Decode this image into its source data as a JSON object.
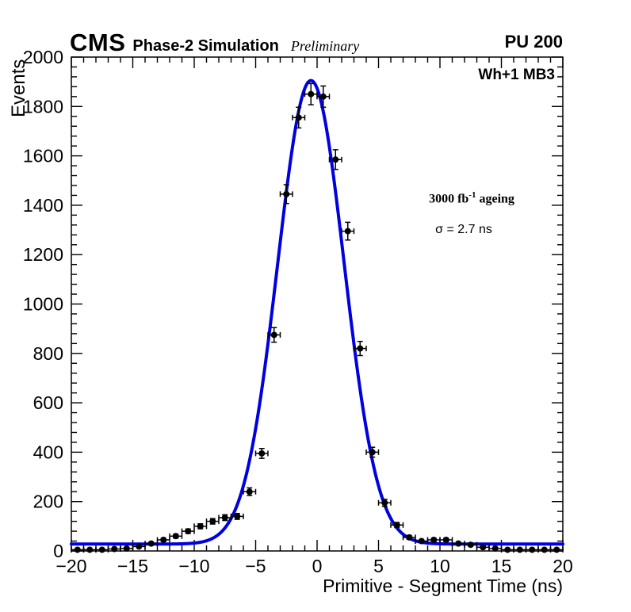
{
  "header": {
    "cms": "CMS",
    "experiment_label": "Phase-2 Simulation",
    "preliminary": "Preliminary",
    "pileup": "PU 200"
  },
  "plot_labels": {
    "chamber": "Wh+1 MB3",
    "lumi_prefix": "3000 fb",
    "lumi_sup": "-1",
    "lumi_suffix": " ageing",
    "sigma_text": "σ = 2.7 ns"
  },
  "chart_data": {
    "type": "scatter",
    "title": "",
    "xlabel": "Primitive - Segment Time (ns)",
    "ylabel": "Events",
    "xlim": [
      -20,
      20
    ],
    "ylim": [
      0,
      2000
    ],
    "x_major_step": 5,
    "x_minor_step": 1,
    "y_major_step": 200,
    "y_minor_step": 40,
    "grid": false,
    "legend": "none",
    "marker_color": "#000000",
    "frame_color": "#000000",
    "x": [
      -19.5,
      -18.5,
      -17.5,
      -16.5,
      -15.5,
      -14.5,
      -13.5,
      -12.5,
      -11.5,
      -10.5,
      -9.5,
      -8.5,
      -7.5,
      -6.5,
      -5.5,
      -4.5,
      -3.5,
      -2.5,
      -1.5,
      -0.5,
      0.5,
      1.5,
      2.5,
      3.5,
      4.5,
      5.5,
      6.5,
      7.5,
      8.5,
      9.5,
      10.5,
      11.5,
      12.5,
      13.5,
      14.5,
      15.5,
      16.5,
      17.5,
      18.5,
      19.5
    ],
    "y": [
      5,
      5,
      5,
      8,
      10,
      18,
      30,
      45,
      60,
      80,
      100,
      120,
      135,
      140,
      240,
      395,
      875,
      1445,
      1755,
      1850,
      1840,
      1585,
      1295,
      820,
      400,
      195,
      105,
      55,
      40,
      45,
      45,
      30,
      25,
      15,
      10,
      5,
      5,
      5,
      5,
      5
    ],
    "bin_width_ns": 1,
    "fit": {
      "type": "gaussian_plus_const",
      "amplitude": 1877,
      "mean": -0.5,
      "sigma_ns": 2.7,
      "offset": 28,
      "color": "#0000e0",
      "line_width": 4
    }
  }
}
